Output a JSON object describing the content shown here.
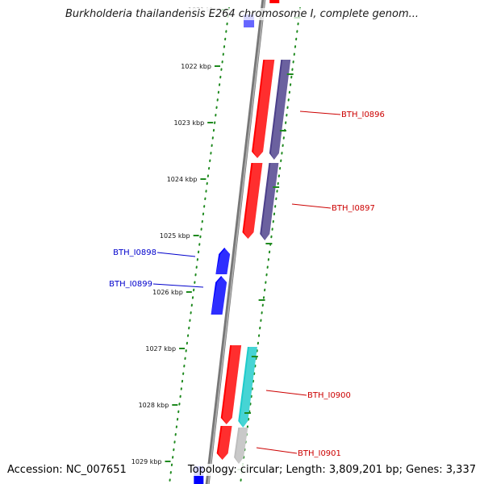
{
  "title": "Burkholderia thailandensis E264 chromosome I, complete genom...",
  "accession_label": "Accession: NC_007651",
  "topology_label": "Topology: circular; Length: 3,809,201 bp; Genes: 3,337",
  "colors": {
    "backbone": "#8a8a8a",
    "ruler_tick": "#1f8a1f",
    "forward_gene": "#0000ff",
    "reverse_gene": "#ff0000",
    "cog_purple": "#4b3f8a",
    "cog_cyan": "#1ecbcb",
    "cog_grey": "#bdbdbd",
    "label_red": "#cc0000",
    "label_blue": "#0000cc"
  },
  "ruler": {
    "ticks": [
      {
        "label": "1021 kbp"
      },
      {
        "label": "1022 kbp"
      },
      {
        "label": "1023 kbp"
      },
      {
        "label": "1024 kbp"
      },
      {
        "label": "1025 kbp"
      },
      {
        "label": "1026 kbp"
      },
      {
        "label": "1027 kbp"
      },
      {
        "label": "1028 kbp"
      },
      {
        "label": "1029 kbp"
      }
    ]
  },
  "genes": [
    {
      "name": "BTH_I0896",
      "strand": "reverse"
    },
    {
      "name": "BTH_I0897",
      "strand": "reverse"
    },
    {
      "name": "BTH_I0898",
      "strand": "forward"
    },
    {
      "name": "BTH_I0899",
      "strand": "forward"
    },
    {
      "name": "BTH_I0900",
      "strand": "reverse"
    },
    {
      "name": "BTH_I0901",
      "strand": "reverse"
    }
  ]
}
